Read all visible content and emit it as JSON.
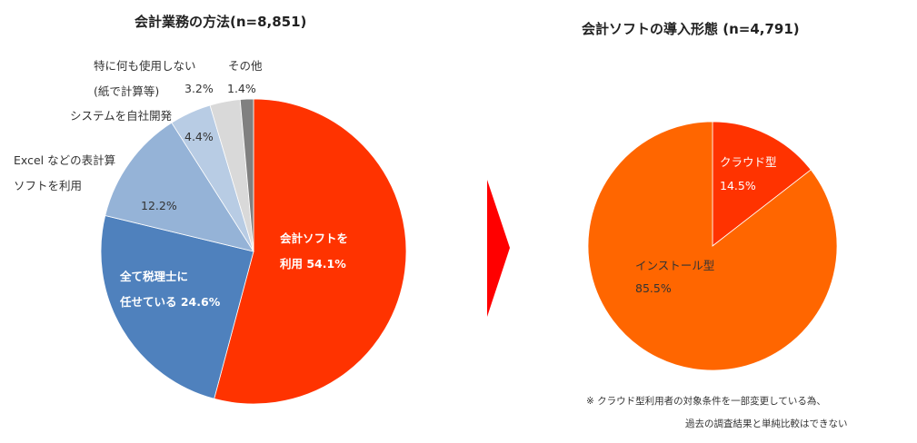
{
  "chart_data": [
    {
      "type": "pie",
      "title": "会計業務の方法(n=8,851)",
      "categories": [
        "会計ソフトを利用",
        "全て税理士に任せている",
        "Excelなどの表計算ソフトを利用",
        "システムを自社開発",
        "特に何も使用しない(紙で計算等)",
        "その他"
      ],
      "values": [
        54.1,
        24.6,
        12.2,
        4.4,
        3.2,
        1.4
      ],
      "colors": [
        "#ff3300",
        "#4f81bd",
        "#95b3d7",
        "#b8cce4",
        "#d9d9d9",
        "#808080"
      ],
      "unit": "%",
      "start_angle": "12 o'clock, clockwise"
    },
    {
      "type": "pie",
      "title": "会計ソフトの導入形態 (n=4,791)",
      "categories": [
        "クラウド型",
        "インストール型"
      ],
      "values": [
        14.5,
        85.5
      ],
      "colors": [
        "#ff3300",
        "#ff6600"
      ],
      "unit": "%",
      "start_angle": "12 o'clock, clockwise"
    }
  ],
  "left": {
    "title": "会計業務の方法(n=8,851)",
    "labels": {
      "none_line1": "特に何も使用しない",
      "none_line2": "(紙で計算等)",
      "none_value": "3.2%",
      "other_line1": "その他",
      "other_value": "1.4%",
      "inhouse": "システムを自社開発",
      "inhouse_value": "4.4%",
      "excel_line1": "Excel などの表計算",
      "excel_line2": "ソフトを利用",
      "excel_value": "12.2%",
      "tax_line1": "全て税理士に",
      "tax_line2": "任せている 24.6%",
      "soft_line1": "会計ソフトを",
      "soft_line2": "利用 54.1%"
    }
  },
  "right": {
    "title": "会計ソフトの導入形態 (n=4,791)",
    "labels": {
      "cloud": "クラウド型",
      "cloud_value": "14.5%",
      "install": "インストール型",
      "install_value": "85.5%"
    },
    "note_line1": "※ クラウド型利用者の対象条件を一部変更している為、",
    "note_line2": "過去の調査結果と単純比較はできない"
  },
  "arrow": {
    "color": "#ff0000"
  }
}
